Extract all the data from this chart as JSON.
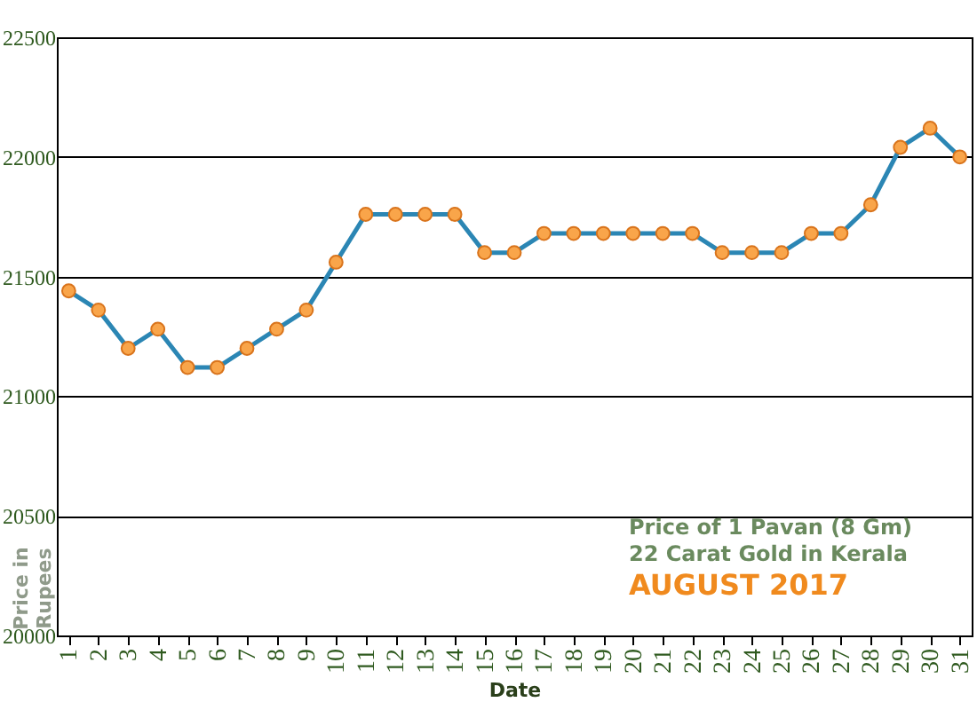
{
  "chart_data": {
    "type": "line",
    "xlabel": "Date",
    "ylabel": "Price in Rupees",
    "categories": [
      "1",
      "2",
      "3",
      "4",
      "5",
      "6",
      "7",
      "8",
      "9",
      "10",
      "11",
      "12",
      "13",
      "14",
      "15",
      "16",
      "17",
      "18",
      "19",
      "20",
      "21",
      "22",
      "23",
      "24",
      "25",
      "26",
      "27",
      "28",
      "29",
      "30",
      "31"
    ],
    "series": [
      {
        "color": "#2b86b4",
        "values": [
          21440,
          21360,
          21200,
          21280,
          21120,
          21120,
          21200,
          21280,
          21360,
          21560,
          21760,
          21760,
          21760,
          21760,
          21600,
          21600,
          21680,
          21680,
          21680,
          21680,
          21680,
          21680,
          21600,
          21600,
          21600,
          21680,
          21680,
          21800,
          22040,
          22120,
          22000
        ]
      }
    ],
    "ylim": [
      20000,
      22500
    ],
    "yticks": [
      20000,
      20500,
      21000,
      21500,
      22000,
      22500
    ],
    "grid": "y",
    "marker": "circle",
    "line_style": "solid",
    "legend": false,
    "annotations": [
      "Price of 1 Pavan (8 Gm)",
      "22 Carat Gold in Kerala",
      "AUGUST 2017"
    ]
  }
}
